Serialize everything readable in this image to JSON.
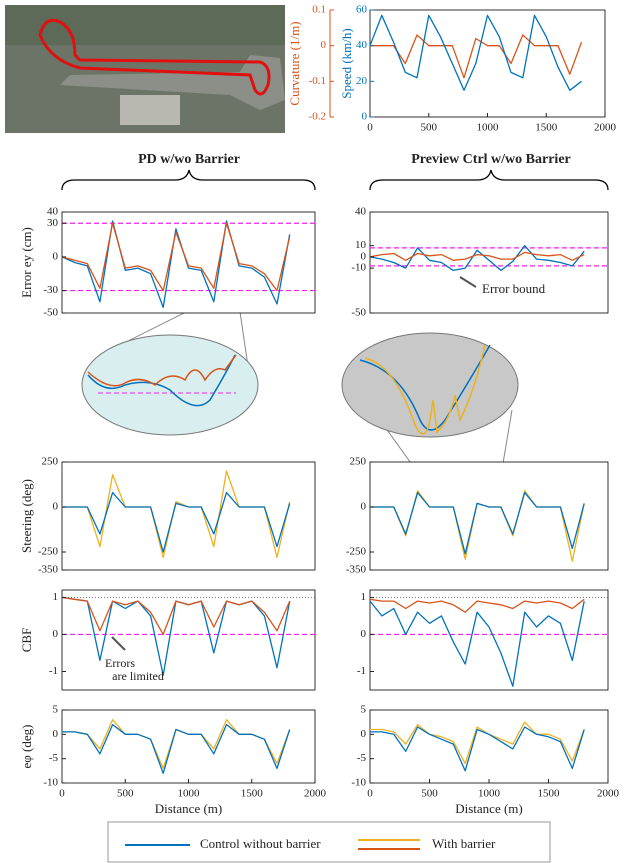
{
  "columns": [
    "PD w/wo Barrier",
    "Preview Ctrl w/wo Barrier"
  ],
  "chart_data": [
    {
      "type": "line",
      "ylabel": "Curvature (1/m)",
      "y2label": "Speed (km/h)",
      "x": [
        0,
        100,
        200,
        300,
        400,
        500,
        600,
        700,
        800,
        900,
        1000,
        1100,
        1200,
        1300,
        1400,
        1500,
        1600,
        1700,
        1800
      ],
      "xlim": [
        0,
        2000
      ],
      "xticks": [
        0,
        500,
        1000,
        1500,
        2000
      ],
      "ylim": [
        -0.2,
        0.1
      ],
      "yticks": [
        -0.2,
        -0.1,
        0,
        0.1
      ],
      "y2lim": [
        0,
        60
      ],
      "y2ticks": [
        0,
        20,
        40,
        60
      ],
      "series": [
        {
          "color": "#D95319",
          "values": [
            0,
            0,
            0,
            -0.05,
            0.03,
            0,
            0,
            0,
            -0.09,
            0.02,
            0,
            0,
            -0.05,
            0.03,
            0,
            0,
            0,
            -0.08,
            0.01
          ]
        },
        {
          "color": "#0072BD",
          "axis": "y2",
          "values": [
            40,
            57,
            42,
            25,
            22,
            57,
            45,
            30,
            15,
            30,
            57,
            45,
            25,
            22,
            57,
            45,
            28,
            15,
            20
          ]
        }
      ]
    },
    {
      "type": "line",
      "ylabel": "Error ey (cm)",
      "x": [
        0,
        100,
        200,
        300,
        400,
        500,
        600,
        700,
        800,
        900,
        1000,
        1100,
        1200,
        1300,
        1400,
        1500,
        1600,
        1700,
        1800
      ],
      "xlim": [
        0,
        2000
      ],
      "ylim": [
        -50,
        40
      ],
      "yticks": [
        -50,
        -30,
        0,
        30,
        40
      ],
      "ref_lines": [
        30,
        -30
      ],
      "series": [
        {
          "name": "Control without barrier",
          "color": "#0072BD",
          "values": [
            0,
            -5,
            -8,
            -40,
            32,
            -12,
            -10,
            -15,
            -45,
            25,
            -10,
            -12,
            -40,
            32,
            -8,
            -10,
            -18,
            -42,
            20
          ]
        },
        {
          "name": "With barrier",
          "color": "#D95319",
          "values": [
            0,
            -3,
            -6,
            -28,
            30,
            -10,
            -8,
            -12,
            -30,
            22,
            -8,
            -10,
            -28,
            30,
            -6,
            -8,
            -15,
            -30,
            18
          ]
        }
      ]
    },
    {
      "type": "line",
      "annotation": "Error bound",
      "x": [
        0,
        100,
        200,
        300,
        400,
        500,
        600,
        700,
        800,
        900,
        1000,
        1100,
        1200,
        1300,
        1400,
        1500,
        1600,
        1700,
        1800
      ],
      "xlim": [
        0,
        2000
      ],
      "ylim": [
        -50,
        40
      ],
      "yticks": [
        -50,
        -10,
        0,
        10,
        40
      ],
      "ref_lines": [
        8,
        -8
      ],
      "series": [
        {
          "color": "#0072BD",
          "values": [
            0,
            -2,
            -5,
            -10,
            8,
            -3,
            -5,
            -12,
            -10,
            6,
            -3,
            -12,
            -4,
            10,
            -2,
            -3,
            -5,
            -8,
            5
          ]
        },
        {
          "color": "#D95319",
          "values": [
            0,
            2,
            3,
            -3,
            3,
            1,
            2,
            -3,
            -2,
            2,
            1,
            -2,
            -2,
            4,
            2,
            1,
            2,
            -3,
            2
          ]
        }
      ]
    },
    {
      "type": "line",
      "ylabel": "Steering (deg)",
      "x": [
        0,
        100,
        200,
        300,
        400,
        500,
        600,
        700,
        800,
        900,
        1000,
        1100,
        1200,
        1300,
        1400,
        1500,
        1600,
        1700,
        1800
      ],
      "xlim": [
        0,
        2000
      ],
      "ylim": [
        -350,
        250
      ],
      "yticks": [
        -350,
        -250,
        0,
        250
      ],
      "series": [
        {
          "color": "#EDB120",
          "values": [
            0,
            0,
            0,
            -220,
            180,
            0,
            0,
            0,
            -280,
            30,
            0,
            0,
            -220,
            200,
            0,
            0,
            0,
            -280,
            30
          ]
        },
        {
          "color": "#0072BD",
          "values": [
            0,
            0,
            0,
            -150,
            80,
            0,
            0,
            0,
            -250,
            20,
            0,
            0,
            -150,
            80,
            0,
            0,
            0,
            -220,
            20
          ]
        }
      ]
    },
    {
      "type": "line",
      "x": [
        0,
        100,
        200,
        300,
        400,
        500,
        600,
        700,
        800,
        900,
        1000,
        1100,
        1200,
        1300,
        1400,
        1500,
        1600,
        1700,
        1800
      ],
      "xlim": [
        0,
        2000
      ],
      "ylim": [
        -350,
        250
      ],
      "yticks": [
        -350,
        -250,
        0,
        250
      ],
      "series": [
        {
          "color": "#EDB120",
          "values": [
            0,
            0,
            0,
            -160,
            90,
            0,
            0,
            0,
            -290,
            20,
            0,
            0,
            -160,
            90,
            0,
            0,
            0,
            -300,
            20
          ]
        },
        {
          "color": "#0072BD",
          "values": [
            0,
            0,
            0,
            -150,
            80,
            0,
            0,
            0,
            -260,
            20,
            0,
            0,
            -150,
            80,
            0,
            0,
            0,
            -230,
            20
          ]
        }
      ]
    },
    {
      "type": "line",
      "ylabel": "CBF",
      "annotation": [
        "Errors",
        "are limited"
      ],
      "x": [
        0,
        100,
        200,
        300,
        400,
        500,
        600,
        700,
        800,
        900,
        1000,
        1100,
        1200,
        1300,
        1400,
        1500,
        1600,
        1700,
        1800
      ],
      "xlim": [
        0,
        2000
      ],
      "ylim": [
        -1.5,
        1.2
      ],
      "yticks": [
        -1,
        0,
        1
      ],
      "ref_lines": [
        0
      ],
      "dotted_lines": [
        1
      ],
      "series": [
        {
          "color": "#0072BD",
          "values": [
            1,
            0.95,
            0.9,
            -0.7,
            0.9,
            0.7,
            0.9,
            0.5,
            -1.1,
            0.9,
            0.8,
            0.9,
            -0.5,
            0.9,
            0.8,
            0.9,
            0.5,
            -0.9,
            0.9
          ]
        },
        {
          "color": "#D95319",
          "values": [
            1,
            0.95,
            0.9,
            0.1,
            0.9,
            0.8,
            0.9,
            0.6,
            0,
            0.9,
            0.8,
            0.9,
            0.2,
            0.9,
            0.8,
            0.9,
            0.6,
            0.1,
            0.9
          ]
        }
      ]
    },
    {
      "type": "line",
      "x": [
        0,
        100,
        200,
        300,
        400,
        500,
        600,
        700,
        800,
        900,
        1000,
        1100,
        1200,
        1300,
        1400,
        1500,
        1600,
        1700,
        1800
      ],
      "xlim": [
        0,
        2000
      ],
      "ylim": [
        -1.5,
        1.2
      ],
      "yticks": [
        -1,
        0,
        1
      ],
      "ref_lines": [
        0
      ],
      "dotted_lines": [
        1
      ],
      "series": [
        {
          "color": "#0072BD",
          "values": [
            0.9,
            0.5,
            0.7,
            0,
            0.6,
            0.3,
            0.5,
            -0.2,
            -0.8,
            0.6,
            0.2,
            -0.5,
            -1.4,
            0.6,
            0.2,
            0.5,
            0.3,
            -0.7,
            0.9
          ]
        },
        {
          "color": "#D95319",
          "values": [
            0.95,
            0.9,
            0.9,
            0.7,
            0.9,
            0.85,
            0.9,
            0.8,
            0.6,
            0.9,
            0.85,
            0.8,
            0.7,
            0.9,
            0.85,
            0.9,
            0.85,
            0.7,
            0.95
          ]
        }
      ]
    },
    {
      "type": "line",
      "ylabel": "eφ (deg)",
      "xlabel": "Distance (m)",
      "x": [
        0,
        100,
        200,
        300,
        400,
        500,
        600,
        700,
        800,
        900,
        1000,
        1100,
        1200,
        1300,
        1400,
        1500,
        1600,
        1700,
        1800
      ],
      "xlim": [
        0,
        2000
      ],
      "xticks": [
        0,
        500,
        1000,
        1500,
        2000
      ],
      "ylim": [
        -10,
        5
      ],
      "yticks": [
        -10,
        -5,
        0,
        5
      ],
      "series": [
        {
          "color": "#EDB120",
          "values": [
            0.5,
            0.5,
            0,
            -3,
            3,
            0,
            0,
            -1,
            -7,
            1,
            0,
            0,
            -3,
            3,
            0,
            0,
            -1,
            -6,
            1
          ]
        },
        {
          "color": "#0072BD",
          "values": [
            0.5,
            0.5,
            0,
            -4,
            2,
            0,
            0,
            -1,
            -8,
            1,
            0,
            0,
            -4,
            2,
            0,
            0,
            -1,
            -7,
            1
          ]
        }
      ]
    },
    {
      "type": "line",
      "xlabel": "Distance (m)",
      "x": [
        0,
        100,
        200,
        300,
        400,
        500,
        600,
        700,
        800,
        900,
        1000,
        1100,
        1200,
        1300,
        1400,
        1500,
        1600,
        1700,
        1800
      ],
      "xlim": [
        0,
        2000
      ],
      "xticks": [
        0,
        500,
        1000,
        1500,
        2000
      ],
      "ylim": [
        -10,
        5
      ],
      "yticks": [
        -10,
        -5,
        0,
        5
      ],
      "series": [
        {
          "color": "#EDB120",
          "values": [
            1,
            1,
            0.5,
            -2,
            2,
            0,
            -0.5,
            -1.5,
            -6,
            1.5,
            0,
            -1,
            -2,
            2.5,
            0,
            0,
            -1,
            -5.5,
            1
          ]
        },
        {
          "color": "#0072BD",
          "values": [
            0.5,
            0.5,
            0,
            -3.5,
            1.5,
            0,
            -1,
            -2,
            -7.5,
            1,
            0,
            -1.5,
            -3,
            1.5,
            0,
            -0.5,
            -1.5,
            -7,
            1
          ]
        }
      ]
    }
  ]
}
